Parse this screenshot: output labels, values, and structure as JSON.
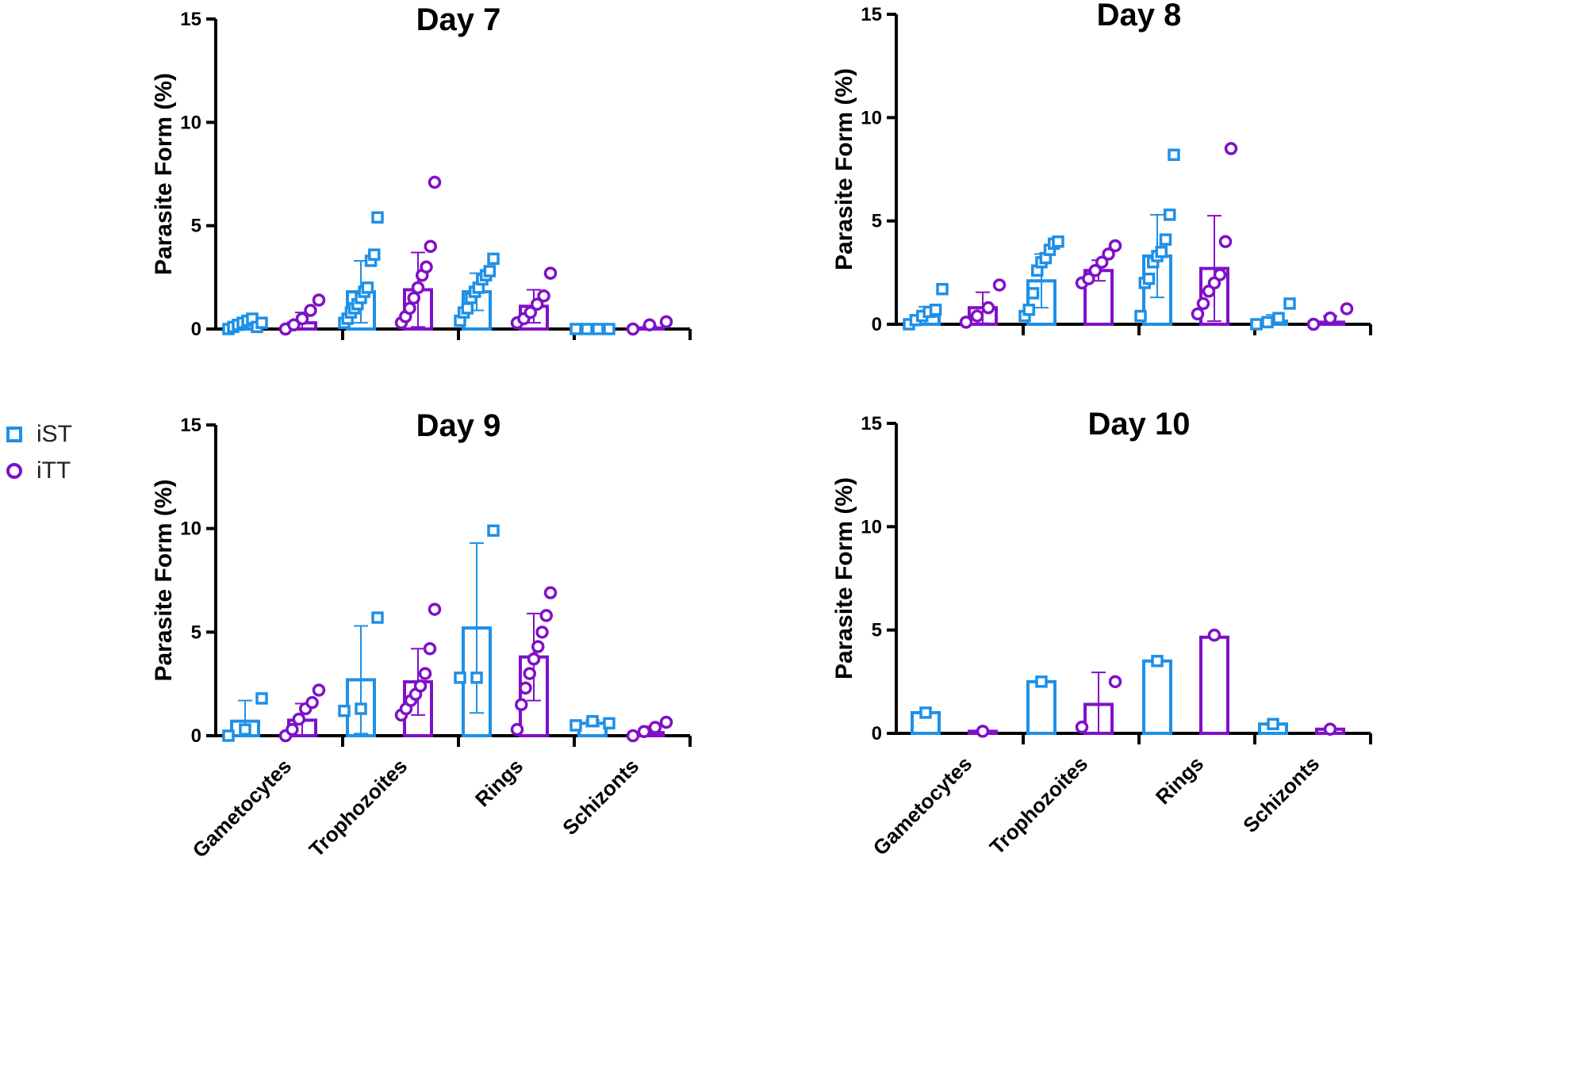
{
  "legend": {
    "items": [
      {
        "label": "iST",
        "color": "#1E90E8",
        "marker": "square"
      },
      {
        "label": "iTT",
        "color": "#8010C8",
        "marker": "circle"
      }
    ]
  },
  "colors": {
    "iST": "#1E90E8",
    "iTT": "#8010C8",
    "axis": "#000000"
  },
  "chart_data": [
    {
      "type": "bar",
      "title": "Day 7",
      "ylabel": "Parasite Form (%)",
      "xlabel": "",
      "ylim": [
        0,
        15
      ],
      "yticks": [
        "0",
        "5",
        "10",
        "15"
      ],
      "categories": [
        "Gametocytes",
        "Trophozoites",
        "Rings",
        "Schizonts"
      ],
      "series": [
        {
          "name": "iST",
          "values": [
            0.2,
            1.8,
            1.8,
            0.0
          ],
          "sd": [
            0.2,
            1.5,
            0.9,
            0.0
          ],
          "points": [
            [
              0,
              0.1,
              0.2,
              0.3,
              0.4,
              0.5,
              0.1,
              0.3
            ],
            [
              0.3,
              0.5,
              0.8,
              1.0,
              1.2,
              1.5,
              1.8,
              2.0,
              3.3,
              3.6,
              5.4
            ],
            [
              0.4,
              0.8,
              1.0,
              1.5,
              1.8,
              2.0,
              2.4,
              2.6,
              2.8,
              3.4
            ],
            [
              0,
              0,
              0,
              0
            ]
          ]
        },
        {
          "name": "iTT",
          "values": [
            0.3,
            1.9,
            1.1,
            0.05
          ],
          "sd": [
            0.5,
            1.8,
            0.8,
            0.1
          ],
          "points": [
            [
              0,
              0.2,
              0.5,
              0.9,
              1.4
            ],
            [
              0.3,
              0.6,
              1.0,
              1.5,
              2.0,
              2.6,
              3.0,
              4.0,
              7.1
            ],
            [
              0.3,
              0.5,
              0.8,
              1.2,
              1.6,
              2.7
            ],
            [
              0,
              0.2,
              0.35
            ]
          ]
        }
      ]
    },
    {
      "type": "bar",
      "title": "Day 8",
      "ylabel": "Parasite Form (%)",
      "xlabel": "",
      "ylim": [
        0,
        15
      ],
      "yticks": [
        "0",
        "5",
        "10",
        "15"
      ],
      "categories": [
        "Gametocytes",
        "Trophozoites",
        "Rings",
        "Schizonts"
      ],
      "series": [
        {
          "name": "iST",
          "values": [
            0.4,
            2.1,
            3.3,
            0.15
          ],
          "sd": [
            0.45,
            1.3,
            2.0,
            0.3
          ],
          "points": [
            [
              0,
              0.2,
              0.4,
              0.6,
              0.7,
              1.7
            ],
            [
              0.4,
              0.7,
              1.5,
              2.6,
              3.0,
              3.2,
              3.6,
              3.9,
              4.0
            ],
            [
              0.4,
              2.0,
              2.2,
              3.0,
              3.3,
              3.5,
              4.1,
              5.3,
              8.2
            ],
            [
              0,
              0.1,
              0.3,
              1.0
            ]
          ]
        },
        {
          "name": "iTT",
          "values": [
            0.8,
            2.6,
            2.7,
            0.1
          ],
          "sd": [
            0.75,
            0.5,
            2.55,
            0.3
          ],
          "points": [
            [
              0.1,
              0.4,
              0.8,
              1.9
            ],
            [
              2.0,
              2.2,
              2.6,
              3.0,
              3.4,
              3.8
            ],
            [
              0.5,
              1.0,
              1.6,
              2.0,
              2.4,
              4.0,
              8.5
            ],
            [
              0,
              0.3,
              0.75
            ]
          ]
        }
      ]
    },
    {
      "type": "bar",
      "title": "Day 9",
      "ylabel": "Parasite Form (%)",
      "xlabel": "",
      "ylim": [
        0,
        15
      ],
      "yticks": [
        "0",
        "5",
        "10",
        "15"
      ],
      "categories": [
        "Gametocytes",
        "Trophozoites",
        "Rings",
        "Schizonts"
      ],
      "series": [
        {
          "name": "iST",
          "values": [
            0.7,
            2.7,
            5.2,
            0.6
          ],
          "sd": [
            1.0,
            2.6,
            4.1,
            0.15
          ],
          "points": [
            [
              0,
              0.3,
              1.8
            ],
            [
              1.2,
              1.3,
              5.7
            ],
            [
              2.8,
              2.8,
              9.9
            ],
            [
              0.5,
              0.7,
              0.6
            ]
          ]
        },
        {
          "name": "iTT",
          "values": [
            0.75,
            2.6,
            3.8,
            0.15
          ],
          "sd": [
            0.8,
            1.6,
            2.1,
            0.3
          ],
          "points": [
            [
              0,
              0.3,
              0.8,
              1.3,
              1.6,
              2.2
            ],
            [
              1.0,
              1.3,
              1.7,
              2.0,
              2.4,
              3.0,
              4.2,
              6.1
            ],
            [
              0.3,
              1.5,
              2.3,
              3.0,
              3.7,
              4.3,
              5.0,
              5.8,
              6.9
            ],
            [
              0,
              0.2,
              0.4,
              0.65
            ]
          ]
        }
      ]
    },
    {
      "type": "bar",
      "title": "Day 10",
      "ylabel": "Parasite Form (%)",
      "xlabel": "",
      "ylim": [
        0,
        15
      ],
      "yticks": [
        "0",
        "5",
        "10",
        "15"
      ],
      "categories": [
        "Gametocytes",
        "Trophozoites",
        "Rings",
        "Schizonts"
      ],
      "series": [
        {
          "name": "iST",
          "values": [
            1.0,
            2.5,
            3.5,
            0.45
          ],
          "sd": [
            0,
            0,
            0,
            0
          ],
          "points": [
            [
              1.0
            ],
            [
              2.5
            ],
            [
              3.5
            ],
            [
              0.45
            ]
          ]
        },
        {
          "name": "iTT",
          "values": [
            0.1,
            1.4,
            4.65,
            0.2
          ],
          "sd": [
            0,
            1.55,
            0,
            0
          ],
          "points": [
            [
              0.1
            ],
            [
              0.3,
              2.5
            ],
            [
              4.75
            ],
            [
              0.2
            ]
          ]
        }
      ]
    }
  ]
}
